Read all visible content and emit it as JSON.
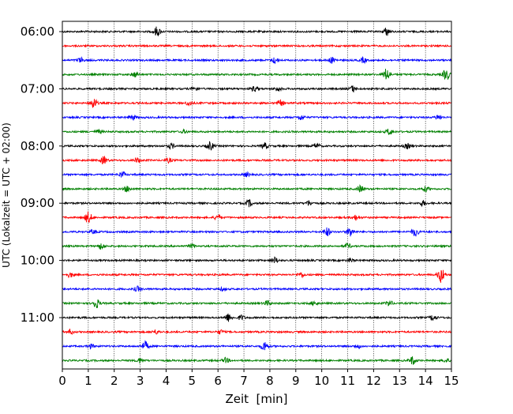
{
  "chart_data": {
    "type": "line",
    "title": "",
    "xlabel": "Zeit  [min]",
    "ylabel": "UTC (Lokalzeit = UTC + 02:00)",
    "xlim": [
      0,
      15
    ],
    "x_ticks": [
      "0",
      "1",
      "2",
      "3",
      "4",
      "5",
      "6",
      "7",
      "8",
      "9",
      "10",
      "11",
      "12",
      "13",
      "14",
      "15"
    ],
    "y_tick_labels": [
      "06:00",
      "07:00",
      "08:00",
      "09:00",
      "10:00",
      "11:00"
    ],
    "y_tick_hours": [
      6,
      7,
      8,
      9,
      10,
      11
    ],
    "row_interval_minutes": 15,
    "start_hour": 6,
    "grid_x": true,
    "trace_colors": [
      "#000000",
      "#ff0000",
      "#0000ff",
      "#008000"
    ],
    "traces": [
      {
        "start": "06:00",
        "color": "#000000",
        "events": [
          [
            3.65,
            1.0
          ],
          [
            12.5,
            0.8
          ]
        ]
      },
      {
        "start": "06:15",
        "color": "#ff0000",
        "events": []
      },
      {
        "start": "06:30",
        "color": "#0000ff",
        "events": [
          [
            0.7,
            0.5
          ],
          [
            8.2,
            0.6
          ],
          [
            10.4,
            0.6
          ],
          [
            11.6,
            0.5
          ]
        ]
      },
      {
        "start": "06:45",
        "color": "#008000",
        "events": [
          [
            2.8,
            0.5
          ],
          [
            12.5,
            1.3
          ],
          [
            14.8,
            1.2
          ]
        ]
      },
      {
        "start": "07:00",
        "color": "#000000",
        "events": [
          [
            5.1,
            0.4
          ],
          [
            7.4,
            0.5
          ],
          [
            8.3,
            0.5
          ],
          [
            11.2,
            0.6
          ]
        ]
      },
      {
        "start": "07:15",
        "color": "#ff0000",
        "events": [
          [
            1.2,
            1.2
          ],
          [
            4.9,
            0.5
          ],
          [
            8.4,
            0.6
          ]
        ]
      },
      {
        "start": "07:30",
        "color": "#0000ff",
        "events": [
          [
            2.7,
            0.5
          ],
          [
            9.2,
            0.5
          ],
          [
            14.5,
            0.5
          ]
        ]
      },
      {
        "start": "07:45",
        "color": "#008000",
        "events": [
          [
            12.6,
            0.6
          ],
          [
            1.4,
            0.4
          ],
          [
            4.7,
            0.3
          ]
        ]
      },
      {
        "start": "08:00",
        "color": "#000000",
        "events": [
          [
            4.2,
            0.5
          ],
          [
            5.7,
            0.9
          ],
          [
            7.8,
            0.6
          ],
          [
            9.8,
            0.5
          ],
          [
            13.3,
            0.5
          ]
        ]
      },
      {
        "start": "08:15",
        "color": "#ff0000",
        "events": [
          [
            1.6,
            0.8
          ],
          [
            2.9,
            0.5
          ],
          [
            4.1,
            0.4
          ]
        ]
      },
      {
        "start": "08:30",
        "color": "#0000ff",
        "events": [
          [
            2.3,
            0.6
          ],
          [
            7.1,
            0.4
          ]
        ]
      },
      {
        "start": "08:45",
        "color": "#008000",
        "events": [
          [
            2.5,
            0.6
          ],
          [
            11.5,
            0.7
          ],
          [
            14.0,
            0.5
          ]
        ]
      },
      {
        "start": "09:00",
        "color": "#000000",
        "events": [
          [
            7.2,
            0.7
          ],
          [
            9.5,
            0.5
          ],
          [
            13.9,
            0.5
          ]
        ]
      },
      {
        "start": "09:15",
        "color": "#ff0000",
        "events": [
          [
            1.0,
            1.2
          ],
          [
            6.0,
            0.6
          ],
          [
            11.3,
            0.5
          ]
        ]
      },
      {
        "start": "09:30",
        "color": "#0000ff",
        "events": [
          [
            1.2,
            0.4
          ],
          [
            10.2,
            0.9
          ],
          [
            11.1,
            1.0
          ],
          [
            13.6,
            0.9
          ]
        ]
      },
      {
        "start": "09:45",
        "color": "#008000",
        "events": [
          [
            1.5,
            0.6
          ],
          [
            5.0,
            0.4
          ],
          [
            11.0,
            0.5
          ]
        ]
      },
      {
        "start": "10:00",
        "color": "#000000",
        "events": [
          [
            8.2,
            0.6
          ],
          [
            11.1,
            0.4
          ]
        ]
      },
      {
        "start": "10:15",
        "color": "#ff0000",
        "events": [
          [
            0.3,
            0.5
          ],
          [
            9.2,
            0.5
          ],
          [
            14.6,
            1.6
          ]
        ]
      },
      {
        "start": "10:30",
        "color": "#0000ff",
        "events": [
          [
            2.9,
            0.5
          ],
          [
            6.2,
            0.3
          ]
        ]
      },
      {
        "start": "10:45",
        "color": "#008000",
        "events": [
          [
            1.3,
            1.0
          ],
          [
            7.9,
            0.5
          ],
          [
            9.7,
            0.4
          ],
          [
            12.6,
            0.6
          ]
        ]
      },
      {
        "start": "11:00",
        "color": "#000000",
        "events": [
          [
            6.4,
            0.8
          ],
          [
            6.9,
            0.5
          ],
          [
            14.3,
            0.6
          ]
        ]
      },
      {
        "start": "11:15",
        "color": "#ff0000",
        "events": [
          [
            0.3,
            0.5
          ],
          [
            3.6,
            0.4
          ],
          [
            6.1,
            0.4
          ]
        ]
      },
      {
        "start": "11:30",
        "color": "#0000ff",
        "events": [
          [
            1.1,
            0.4
          ],
          [
            3.2,
            0.9
          ],
          [
            7.8,
            1.0
          ],
          [
            11.4,
            0.4
          ]
        ]
      },
      {
        "start": "11:45",
        "color": "#008000",
        "events": [
          [
            3.0,
            0.5
          ],
          [
            6.3,
            0.5
          ],
          [
            13.5,
            0.8
          ],
          [
            14.8,
            0.4
          ]
        ]
      }
    ]
  }
}
